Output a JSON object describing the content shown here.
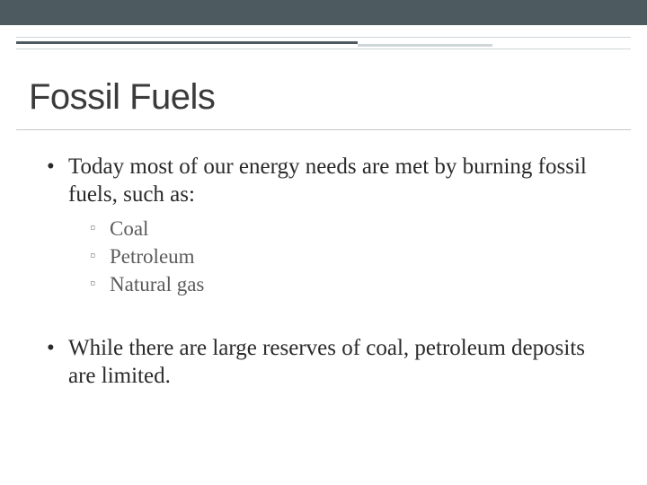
{
  "theme": {
    "top_bar_color": "#4d5a60",
    "accent_thick_color": "#4d5a60",
    "accent_mid_color": "#cfd6d8",
    "thin_line_color": "#cfd6d8",
    "title_underline_color": "#c8c8c8",
    "background_color": "#ffffff",
    "title_color": "#3b3b3b",
    "body_text_color": "#2a2a2a",
    "sub_bullet_color": "#5b5b5b",
    "title_font": "Trebuchet MS",
    "body_font": "Georgia",
    "title_fontsize_pt": 30,
    "bullet1_fontsize_pt": 19,
    "bullet2_fontsize_pt": 17
  },
  "slide": {
    "title": "Fossil Fuels",
    "bullets": [
      {
        "text": "Today most of our energy needs are met by burning fossil fuels, such as:",
        "subs": [
          "Coal",
          "Petroleum",
          "Natural gas"
        ]
      },
      {
        "text": "While there are large reserves of coal, petroleum deposits are limited.",
        "subs": []
      }
    ]
  }
}
